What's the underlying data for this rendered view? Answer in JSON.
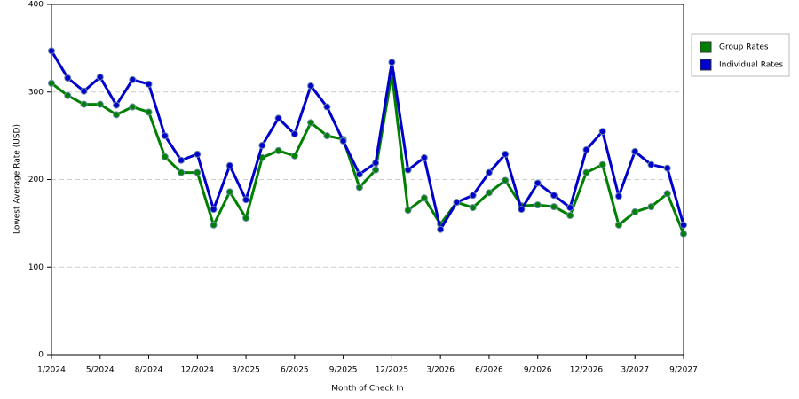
{
  "chart_data": {
    "type": "line",
    "xlabel": "Month of Check In",
    "ylabel": "Lowest Average Rate (USD)",
    "categories": [
      "1/2024",
      null,
      null,
      "5/2024",
      null,
      null,
      "8/2024",
      null,
      null,
      "12/2024",
      null,
      null,
      "3/2025",
      null,
      null,
      "6/2025",
      null,
      null,
      "9/2025",
      null,
      null,
      "12/2025",
      null,
      null,
      "3/2026",
      null,
      null,
      "6/2026",
      null,
      null,
      "9/2026",
      null,
      null,
      "12/2026",
      null,
      null,
      "3/2027",
      null,
      null,
      "9/2027"
    ],
    "series": [
      {
        "name": "Group Rates",
        "color": "#008000",
        "values": [
          310,
          296,
          286,
          286,
          274,
          283,
          277,
          226,
          208,
          208,
          148,
          186,
          156,
          225,
          233,
          227,
          265,
          250,
          246,
          191,
          211,
          321,
          165,
          179,
          149,
          174,
          168,
          185,
          199,
          170,
          171,
          169,
          159,
          208,
          217,
          148,
          163,
          169,
          184,
          138
        ]
      },
      {
        "name": "Individual Rates",
        "color": "#0000cc",
        "values": [
          347,
          316,
          301,
          317,
          285,
          314,
          309,
          250,
          222,
          229,
          166,
          216,
          177,
          239,
          270,
          252,
          307,
          283,
          244,
          206,
          219,
          334,
          211,
          225,
          143,
          174,
          182,
          208,
          229,
          166,
          196,
          182,
          168,
          234,
          255,
          181,
          232,
          217,
          213,
          148
        ]
      }
    ],
    "ylim": [
      0,
      400
    ],
    "yticks": [
      0,
      100,
      200,
      300,
      400
    ],
    "grid": true,
    "legend": "right"
  }
}
